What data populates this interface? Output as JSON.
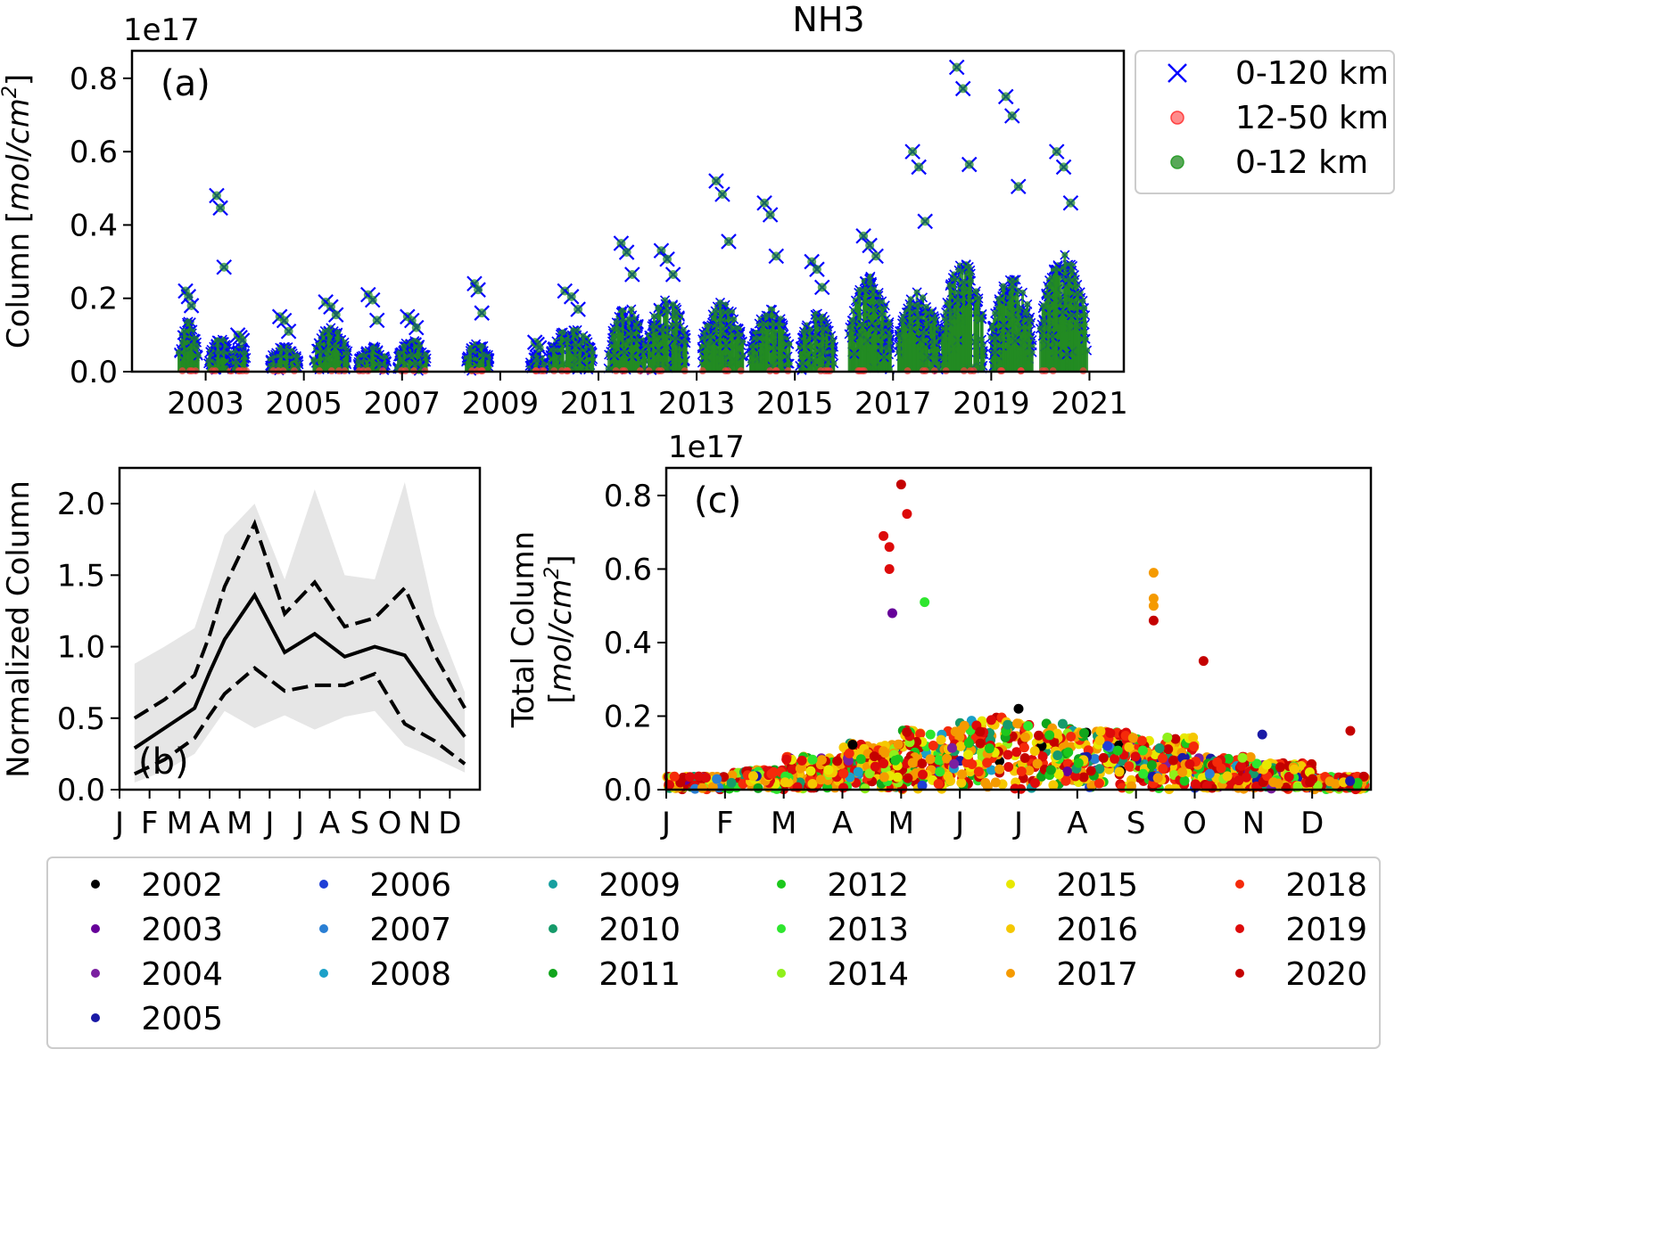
{
  "figure_title": "NH3",
  "chart_data": [
    {
      "id": "a",
      "type": "scatter",
      "panel_label": "(a)",
      "title": "NH3",
      "ylabel_text": "Column [",
      "ylabel_unit": "mol/cm",
      "ylabel_sup": "2",
      "ylabel_close": "]",
      "offset_text": "1e17",
      "xlim": [
        2001.5,
        2021.7
      ],
      "ylim": [
        0.0,
        0.875
      ],
      "x_ticks": [
        2003,
        2005,
        2007,
        2009,
        2011,
        2013,
        2015,
        2017,
        2019,
        2021
      ],
      "x_tick_labels": [
        "2003",
        "2005",
        "2007",
        "2009",
        "2011",
        "2013",
        "2015",
        "2017",
        "2019",
        "2021"
      ],
      "y_ticks": [
        0.0,
        0.2,
        0.4,
        0.6,
        0.8
      ],
      "y_tick_labels": [
        "0.0",
        "0.2",
        "0.4",
        "0.6",
        "0.8"
      ],
      "legend_position": "outside-right",
      "series": [
        {
          "name": "0-120 km",
          "marker": "x",
          "color": "#0000ff"
        },
        {
          "name": "12-50 km",
          "marker": "o",
          "color": "#ff4040"
        },
        {
          "name": "0-12 km",
          "marker": "o",
          "color": "#228b22"
        }
      ],
      "seasonal_clusters": [
        {
          "x_start": 2002.45,
          "x_end": 2002.85,
          "level": 0.14,
          "peak": 0.22
        },
        {
          "x_start": 2003.05,
          "x_end": 2003.55,
          "level": 0.09,
          "peak": 0.48
        },
        {
          "x_start": 2003.55,
          "x_end": 2003.85,
          "level": 0.07,
          "peak": 0.1
        },
        {
          "x_start": 2004.3,
          "x_end": 2004.9,
          "level": 0.07,
          "peak": 0.15
        },
        {
          "x_start": 2005.2,
          "x_end": 2005.9,
          "level": 0.12,
          "peak": 0.19
        },
        {
          "x_start": 2006.1,
          "x_end": 2006.7,
          "level": 0.07,
          "peak": 0.21
        },
        {
          "x_start": 2006.9,
          "x_end": 2007.5,
          "level": 0.09,
          "peak": 0.15
        },
        {
          "x_start": 2008.3,
          "x_end": 2008.8,
          "level": 0.08,
          "peak": 0.24
        },
        {
          "x_start": 2009.6,
          "x_end": 2009.9,
          "level": 0.05,
          "peak": 0.08
        },
        {
          "x_start": 2010.0,
          "x_end": 2010.9,
          "level": 0.12,
          "peak": 0.22
        },
        {
          "x_start": 2011.2,
          "x_end": 2011.95,
          "level": 0.18,
          "peak": 0.35
        },
        {
          "x_start": 2012.0,
          "x_end": 2012.8,
          "level": 0.2,
          "peak": 0.33
        },
        {
          "x_start": 2013.1,
          "x_end": 2013.95,
          "level": 0.19,
          "peak": 0.52
        },
        {
          "x_start": 2014.1,
          "x_end": 2014.9,
          "level": 0.17,
          "peak": 0.46
        },
        {
          "x_start": 2015.1,
          "x_end": 2015.8,
          "level": 0.16,
          "peak": 0.3
        },
        {
          "x_start": 2016.1,
          "x_end": 2016.95,
          "level": 0.26,
          "peak": 0.37
        },
        {
          "x_start": 2017.1,
          "x_end": 2017.95,
          "level": 0.22,
          "peak": 0.6
        },
        {
          "x_start": 2018.0,
          "x_end": 2018.85,
          "level": 0.3,
          "peak": 0.83
        },
        {
          "x_start": 2019.0,
          "x_end": 2019.85,
          "level": 0.26,
          "peak": 0.75
        },
        {
          "x_start": 2020.0,
          "x_end": 2020.95,
          "level": 0.32,
          "peak": 0.6
        }
      ]
    },
    {
      "id": "b",
      "type": "line",
      "panel_label": "(b)",
      "ylabel": "Normalized Column",
      "xlim": [
        0,
        12
      ],
      "ylim": [
        0.0,
        2.25
      ],
      "x_tick_labels": [
        "J",
        "F",
        "M",
        "A",
        "M",
        "J",
        "J",
        "A",
        "S",
        "O",
        "N",
        "D"
      ],
      "y_ticks": [
        0.0,
        0.5,
        1.0,
        1.5,
        2.0
      ],
      "y_tick_labels": [
        "0.0",
        "0.5",
        "1.0",
        "1.5",
        "2.0"
      ],
      "x": [
        0.5,
        1.5,
        2.5,
        3.0,
        3.5,
        4.5,
        5.5,
        6.5,
        7.5,
        8.5,
        9.5,
        10.5,
        11.5
      ],
      "series": [
        {
          "style": "solid",
          "values": [
            0.29,
            0.43,
            0.57,
            0.82,
            1.05,
            1.36,
            0.96,
            1.09,
            0.93,
            1.0,
            0.94,
            0.64,
            0.37
          ]
        },
        {
          "style": "dashed",
          "values": [
            0.5,
            0.63,
            0.8,
            1.08,
            1.42,
            1.86,
            1.23,
            1.45,
            1.14,
            1.2,
            1.41,
            0.94,
            0.57
          ]
        },
        {
          "style": "dashed",
          "values": [
            0.11,
            0.21,
            0.36,
            0.52,
            0.67,
            0.85,
            0.69,
            0.73,
            0.73,
            0.81,
            0.46,
            0.34,
            0.18
          ]
        }
      ],
      "band_upper": [
        0.88,
        1.0,
        1.13,
        1.45,
        1.78,
        2.0,
        1.47,
        2.1,
        1.5,
        1.47,
        2.15,
        1.22,
        0.68
      ],
      "band_lower": [
        0.05,
        0.13,
        0.25,
        0.4,
        0.55,
        0.43,
        0.52,
        0.42,
        0.51,
        0.55,
        0.31,
        0.22,
        0.12
      ],
      "band_color": "#e6e6e6"
    },
    {
      "id": "c",
      "type": "scatter",
      "panel_label": "(c)",
      "ylabel_line1": "Total Column",
      "ylabel_unit": "mol/cm",
      "ylabel_sup": "2",
      "offset_text": "1e17",
      "xlim": [
        0,
        12
      ],
      "ylim": [
        0.0,
        0.875
      ],
      "x_tick_labels": [
        "J",
        "F",
        "M",
        "A",
        "M",
        "J",
        "J",
        "A",
        "S",
        "O",
        "N",
        "D"
      ],
      "y_ticks": [
        0.0,
        0.2,
        0.4,
        0.6,
        0.8
      ],
      "y_tick_labels": [
        "0.0",
        "0.2",
        "0.4",
        "0.6",
        "0.8"
      ],
      "notable_points": [
        {
          "month": 4.0,
          "value": 0.83,
          "year": "2020"
        },
        {
          "month": 4.1,
          "value": 0.75,
          "year": "2019"
        },
        {
          "month": 3.7,
          "value": 0.69,
          "year": "2019"
        },
        {
          "month": 3.8,
          "value": 0.66,
          "year": "2019"
        },
        {
          "month": 3.8,
          "value": 0.6,
          "year": "2019"
        },
        {
          "month": 3.85,
          "value": 0.48,
          "year": "2003"
        },
        {
          "month": 4.4,
          "value": 0.51,
          "year": "2013"
        },
        {
          "month": 8.3,
          "value": 0.59,
          "year": "2017"
        },
        {
          "month": 8.3,
          "value": 0.52,
          "year": "2017"
        },
        {
          "month": 8.3,
          "value": 0.5,
          "year": "2017"
        },
        {
          "month": 8.3,
          "value": 0.46,
          "year": "2020"
        },
        {
          "month": 9.15,
          "value": 0.35,
          "year": "2020"
        },
        {
          "month": 6.0,
          "value": 0.22,
          "year": "2002"
        },
        {
          "month": 10.15,
          "value": 0.15,
          "year": "2005"
        },
        {
          "month": 11.65,
          "value": 0.16,
          "year": "2020"
        }
      ],
      "bulk": {
        "description_note": "",
        "month_profile": [
          0.02,
          0.03,
          0.05,
          0.07,
          0.09,
          0.11,
          0.1,
          0.09,
          0.08,
          0.05,
          0.04,
          0.02
        ]
      }
    }
  ],
  "year_legend": [
    {
      "year": "2002",
      "color": "#000000"
    },
    {
      "year": "2003",
      "color": "#660099"
    },
    {
      "year": "2004",
      "color": "#7a1fa0"
    },
    {
      "year": "2005",
      "color": "#1a1aa6"
    },
    {
      "year": "2006",
      "color": "#1f3fd6"
    },
    {
      "year": "2007",
      "color": "#2a7fd4"
    },
    {
      "year": "2008",
      "color": "#1ba0c8"
    },
    {
      "year": "2009",
      "color": "#17a0a0"
    },
    {
      "year": "2010",
      "color": "#169a6a"
    },
    {
      "year": "2011",
      "color": "#10a51c"
    },
    {
      "year": "2012",
      "color": "#1cc81c"
    },
    {
      "year": "2013",
      "color": "#2ee62e"
    },
    {
      "year": "2014",
      "color": "#8ff01a"
    },
    {
      "year": "2015",
      "color": "#e8e800"
    },
    {
      "year": "2016",
      "color": "#f5c800"
    },
    {
      "year": "2017",
      "color": "#f59a00"
    },
    {
      "year": "2018",
      "color": "#f52a0a"
    },
    {
      "year": "2019",
      "color": "#dd0a0a"
    },
    {
      "year": "2020",
      "color": "#c40000"
    }
  ]
}
